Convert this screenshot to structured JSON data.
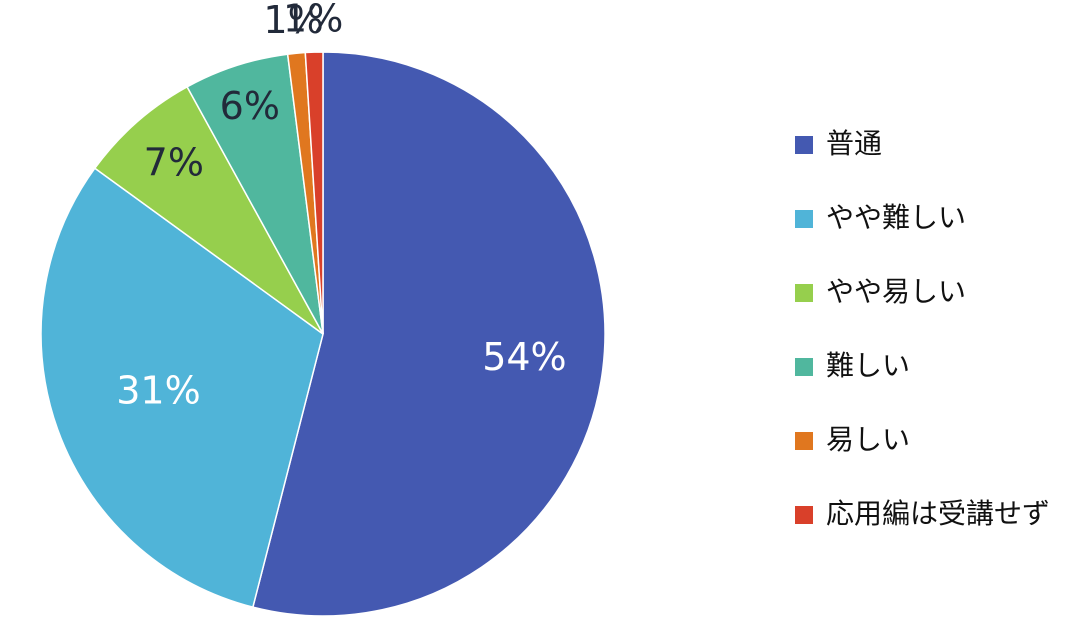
{
  "chart_data": {
    "type": "pie",
    "categories": [
      "普通",
      "やや難しい",
      "やや易しい",
      "難しい",
      "易しい",
      "応用編は受講せず"
    ],
    "values": [
      54,
      31,
      7,
      6,
      1,
      1
    ],
    "data_labels": [
      "54%",
      "31%",
      "7%",
      "6%",
      "1%",
      "1%"
    ],
    "colors": [
      "#4459b1",
      "#50b4d8",
      "#96cf4d",
      "#50b79e",
      "#e0771f",
      "#d9402a"
    ],
    "label_colors": [
      "#ffffff",
      "#ffffff",
      "#222a3a",
      "#222a3a",
      "#222a3a",
      "#222a3a"
    ],
    "start_angle_deg": 0,
    "direction": "clockwise",
    "legend_position": "right"
  }
}
